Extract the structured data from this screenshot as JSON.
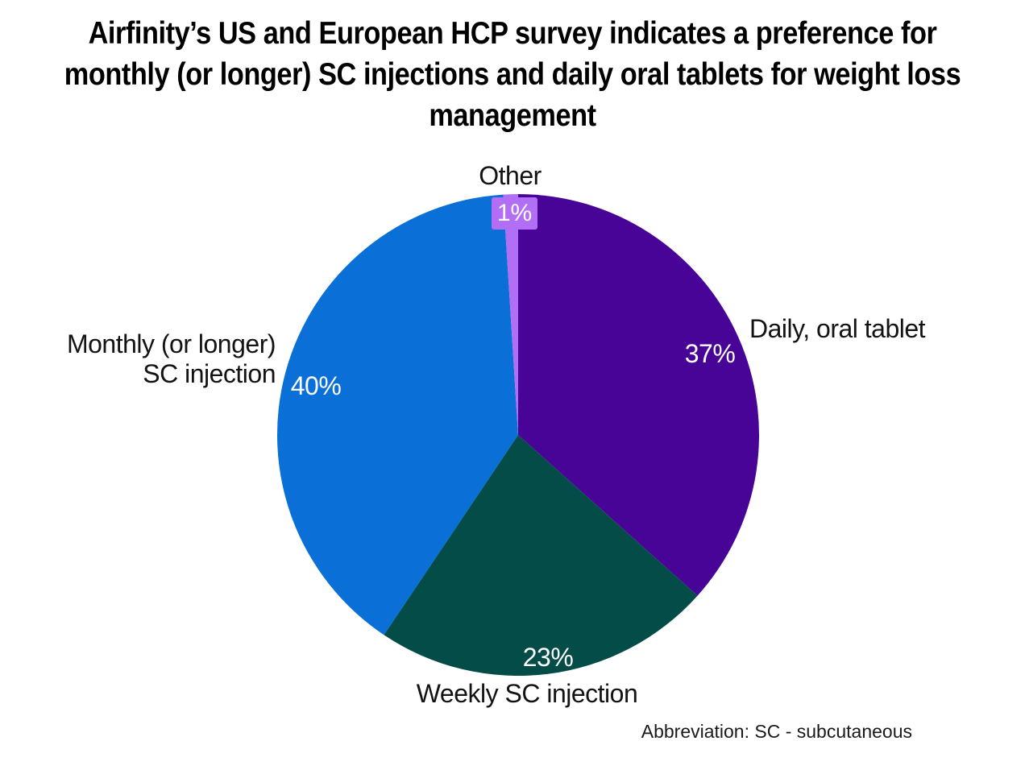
{
  "title": "Airfinity’s US and European HCP survey indicates a preference for monthly (or longer) SC injections and daily oral tablets for weight loss management",
  "footnote": "Abbreviation: SC - subcutaneous",
  "colors": {
    "background": "#ffffff",
    "daily_oral_tablet": "#470496",
    "weekly_sc_injection": "#034c47",
    "monthly_sc_injection": "#0a70d8",
    "other": "#b26ef5",
    "title_text": "#000000",
    "label_text": "#131313",
    "pct_text": "#ffffff"
  },
  "chart_data": {
    "type": "pie",
    "title": "Airfinity’s US and European HCP survey indicates a preference for monthly (or longer) SC injections and daily oral tablets for weight loss management",
    "unit": "%",
    "direction": "clockwise",
    "start_angle_deg": 0,
    "legend_position": "none",
    "slices": [
      {
        "id": "daily-oral-tablet",
        "label": "Daily, oral tablet",
        "value": 37,
        "pct_label": "37%",
        "color": "#470496"
      },
      {
        "id": "weekly-sc-injection",
        "label": "Weekly SC injection",
        "value": 23,
        "pct_label": "23%",
        "color": "#034c47"
      },
      {
        "id": "monthly-sc-injection",
        "label": "Monthly (or longer) SC injection",
        "label_lines": [
          "Monthly (or longer)",
          "SC injection"
        ],
        "value": 40,
        "pct_label": "40%",
        "color": "#0a70d8"
      },
      {
        "id": "other",
        "label": "Other",
        "value": 1,
        "pct_label": "1%",
        "color": "#b26ef5"
      }
    ]
  }
}
